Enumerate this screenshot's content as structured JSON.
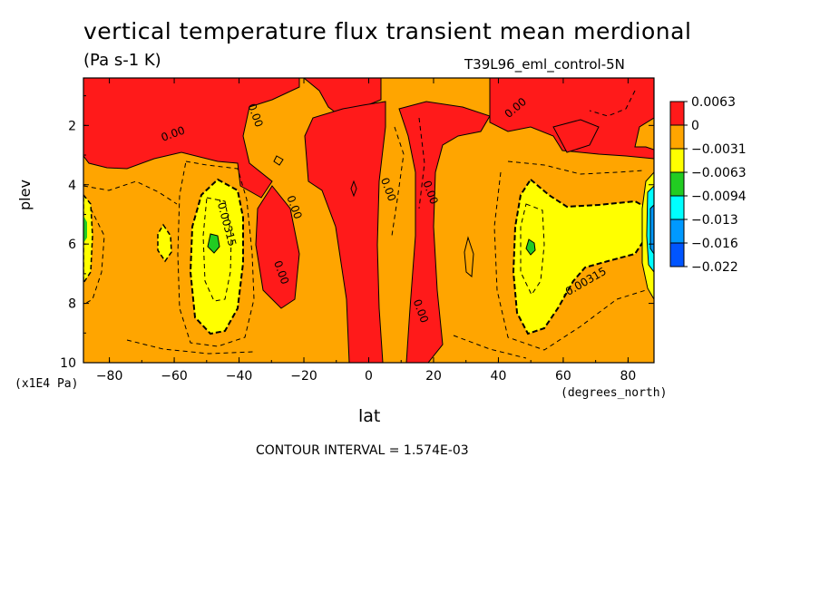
{
  "chart_data": {
    "type": "heatmap",
    "title": "vertical temperature flux transient mean merdional",
    "units_label": "(Pa s-1 K)",
    "dataset_label": "T39L96_eml_control-5N",
    "xlabel": "lat",
    "ylabel": "plev",
    "x_units": "(degrees_north)",
    "y_units": "(x1E4 Pa)",
    "xlim": [
      -88,
      88
    ],
    "ylim": [
      10,
      0.4
    ],
    "x_ticks": [
      -80,
      -60,
      -40,
      -20,
      0,
      20,
      40,
      60,
      80
    ],
    "y_ticks": [
      2,
      4,
      6,
      8,
      10
    ],
    "contour_interval_text": "CONTOUR INTERVAL = 1.574E-03",
    "contour_labels": [
      {
        "text": "0.00",
        "lat": -60,
        "plev": 2.4
      },
      {
        "text": "0.00",
        "lat": -36,
        "plev": 1.7
      },
      {
        "text": "0.00",
        "lat": -24,
        "plev": 4.8
      },
      {
        "text": "0.00",
        "lat": -28,
        "plev": 7.0
      },
      {
        "text": "0.00",
        "lat": 5,
        "plev": 4.2
      },
      {
        "text": "0.00",
        "lat": 18,
        "plev": 4.3
      },
      {
        "text": "0.00",
        "lat": 15,
        "plev": 8.3
      },
      {
        "text": "0.00",
        "lat": 46,
        "plev": 1.5
      },
      {
        "text": "-0.00315",
        "lat": -45,
        "plev": 5.3
      },
      {
        "text": "-0.00315",
        "lat": 67,
        "plev": 7.4
      }
    ],
    "colorbar": {
      "levels": [
        "0.0063",
        "0",
        "-0.0031",
        "-0.0063",
        "-0.0094",
        "-0.013",
        "-0.016",
        "-0.022"
      ],
      "colors": [
        "#ff1a1a",
        "#ffa500",
        "#ffff00",
        "#22cc22",
        "#00ffff",
        "#0099ff",
        "#0055ff"
      ]
    },
    "regions": {
      "red_positive": [
        {
          "name": "sh-upper-left",
          "lat_range": [
            -88,
            -60
          ],
          "plev_range": [
            0.4,
            3
          ]
        },
        {
          "name": "sh-column",
          "lat_range": [
            -35,
            -25
          ],
          "plev_range": [
            4,
            9
          ]
        },
        {
          "name": "equatorial-column",
          "lat_range": [
            -10,
            5
          ],
          "plev_range": [
            0.4,
            10
          ]
        },
        {
          "name": "nh-column",
          "lat_range": [
            10,
            35
          ],
          "plev_range": [
            1.5,
            10
          ]
        },
        {
          "name": "nh-upper",
          "lat_range": [
            38,
            88
          ],
          "plev_range": [
            0.4,
            2.5
          ]
        }
      ],
      "yellow_min": [
        {
          "name": "sh-minimum",
          "lat_center": -48,
          "plev_center": 6
        },
        {
          "name": "nh-minimum",
          "lat_center": 52,
          "plev_center": 6
        }
      ],
      "green_core": [
        {
          "name": "sh-core",
          "lat": -48,
          "plev": 6
        },
        {
          "name": "nh-core",
          "lat": 50,
          "plev": 6
        }
      ]
    }
  }
}
